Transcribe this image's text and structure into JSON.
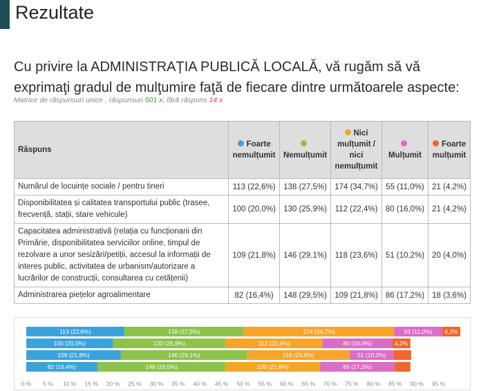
{
  "header": {
    "title": "Rezultate"
  },
  "question": {
    "text": "Cu privire la ADMINISTRAȚIA PUBLICĂ LOCALĂ, vă rugăm să vă exprimaţi gradul de mulţumire faţă de fiecare dintre următoarele aspecte:",
    "meta": {
      "prefix": "Matrice de răspunsuri unice , răspunsuri",
      "answered": "501 x",
      "separator": ", fără răspuns",
      "skipped": "14 x"
    }
  },
  "table": {
    "headers": [
      "Răspuns",
      "Foarte nemulțumit",
      "Nemulțumit",
      "Nici mulțumit / nici nemulțumit",
      "Mulțumit",
      "Foarte mulțumit"
    ],
    "colors": [
      "#3aa3db",
      "#8cc34b",
      "#f6a52a",
      "#db6dc6",
      "#f0662b"
    ],
    "rows": [
      {
        "label": "Numărul de locuințe sociale / pentru tineri",
        "cells": [
          "113 (22,6%)",
          "138 (27,5%)",
          "174 (34,7%)",
          "55 (11,0%)",
          "21 (4,2%)"
        ],
        "values": [
          22.6,
          27.5,
          34.7,
          11.0,
          4.2
        ],
        "bar_labels": [
          "113 (22,6%)",
          "138 (27,5%)",
          "174 (34,7%)",
          "55 (11,0%)",
          "4,2%"
        ]
      },
      {
        "label": "Disponibilitatea și calitatea transportului public (trasee, frecvență, stații, stare vehicule)",
        "cells": [
          "100 (20,0%)",
          "130 (25,9%)",
          "112 (22,4%)",
          "80 (16,0%)",
          "21 (4,2%)"
        ],
        "values": [
          20.0,
          25.9,
          22.4,
          16.0,
          4.2
        ],
        "bar_labels": [
          "100 (20,0%)",
          "130 (25,9%)",
          "112 (22,4%)",
          "80 (16,0%)",
          "4,2%"
        ]
      },
      {
        "label": "Capacitatea administrativă (relația cu funcționarii din Primărie, disponibilitatea serviciilor online, timpul de rezolvare a unor sesizări/petiții, accesul la informații de interes public, activitatea de urbanism/autorizare a lucrărilor de construcții, consultarea cu cetățenii)",
        "cells": [
          "109 (21,8%)",
          "146 (29,1%)",
          "118 (23,6%)",
          "51 (10,2%)",
          "20 (4,0%)"
        ],
        "values": [
          21.8,
          29.1,
          23.6,
          10.2,
          4.0
        ],
        "bar_labels": [
          "109 (21,8%)",
          "146 (29,1%)",
          "118 (23,6%)",
          "51 (10,2%)",
          null
        ]
      },
      {
        "label": "Administrarea piețelor agroalimentare",
        "cells": [
          "82 (16,4%)",
          "148 (29,5%)",
          "109 (21,8%)",
          "86 (17,2%)",
          "18 (3,6%)"
        ],
        "values": [
          16.4,
          29.5,
          21.8,
          17.2,
          3.6
        ],
        "bar_labels": [
          "82 (16,4%)",
          "148 (29,5%)",
          "109 (21,8%)",
          "86 (17,2%)",
          null
        ]
      }
    ]
  },
  "chart": {
    "xlim": [
      0,
      100
    ],
    "xticks": [
      {
        "value": 0,
        "label": "0 %"
      },
      {
        "value": 5,
        "label": "5 %"
      },
      {
        "value": 10,
        "label": "10 %"
      },
      {
        "value": 15,
        "label": "15 %"
      },
      {
        "value": 20,
        "label": "20 %"
      },
      {
        "value": 25,
        "label": "25 %"
      },
      {
        "value": 30,
        "label": "30 %"
      },
      {
        "value": 35,
        "label": "35 %"
      },
      {
        "value": 40,
        "label": "40 %"
      },
      {
        "value": 45,
        "label": "45 %"
      },
      {
        "value": 50,
        "label": "50 %"
      },
      {
        "value": 55,
        "label": "55 %"
      },
      {
        "value": 60,
        "label": "60 %"
      },
      {
        "value": 65,
        "label": "65 %"
      },
      {
        "value": 70,
        "label": "70 %"
      },
      {
        "value": 75,
        "label": "75 %"
      },
      {
        "value": 80,
        "label": "80 %"
      },
      {
        "value": 85,
        "label": "85 %"
      },
      {
        "value": 90,
        "label": "90 %"
      },
      {
        "value": 95,
        "label": "95 %"
      }
    ]
  }
}
